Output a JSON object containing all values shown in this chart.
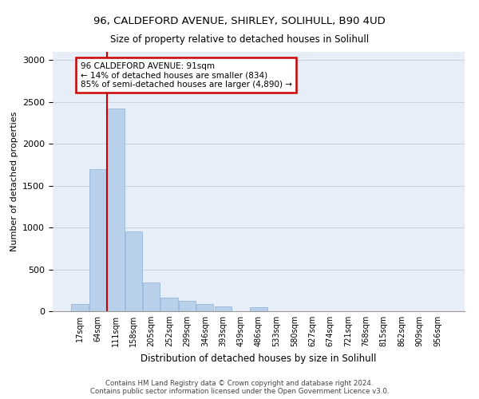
{
  "title_line1": "96, CALDEFORD AVENUE, SHIRLEY, SOLIHULL, B90 4UD",
  "title_line2": "Size of property relative to detached houses in Solihull",
  "xlabel": "Distribution of detached houses by size in Solihull",
  "ylabel": "Number of detached properties",
  "bar_color": "#b8d0ea",
  "bar_edge_color": "#8ab0d8",
  "background_color": "#e8eef8",
  "categories": [
    "17sqm",
    "64sqm",
    "111sqm",
    "158sqm",
    "205sqm",
    "252sqm",
    "299sqm",
    "346sqm",
    "393sqm",
    "439sqm",
    "486sqm",
    "533sqm",
    "580sqm",
    "627sqm",
    "674sqm",
    "721sqm",
    "768sqm",
    "815sqm",
    "862sqm",
    "909sqm",
    "956sqm"
  ],
  "values": [
    90,
    1700,
    2420,
    950,
    340,
    160,
    120,
    90,
    60,
    0,
    50,
    0,
    0,
    0,
    0,
    0,
    0,
    0,
    0,
    0,
    0
  ],
  "ylim": [
    0,
    3100
  ],
  "yticks": [
    0,
    500,
    1000,
    1500,
    2000,
    2500,
    3000
  ],
  "annotation_text": "96 CALDEFORD AVENUE: 91sqm\n← 14% of detached houses are smaller (834)\n85% of semi-detached houses are larger (4,890) →",
  "annotation_box_color": "#ffffff",
  "annotation_box_edge": "#cc0000",
  "footer_line1": "Contains HM Land Registry data © Crown copyright and database right 2024.",
  "footer_line2": "Contains public sector information licensed under the Open Government Licence v3.0.",
  "property_line_color": "#cc0000",
  "property_line_x": 1.5,
  "grid_color": "#c8d4e4"
}
